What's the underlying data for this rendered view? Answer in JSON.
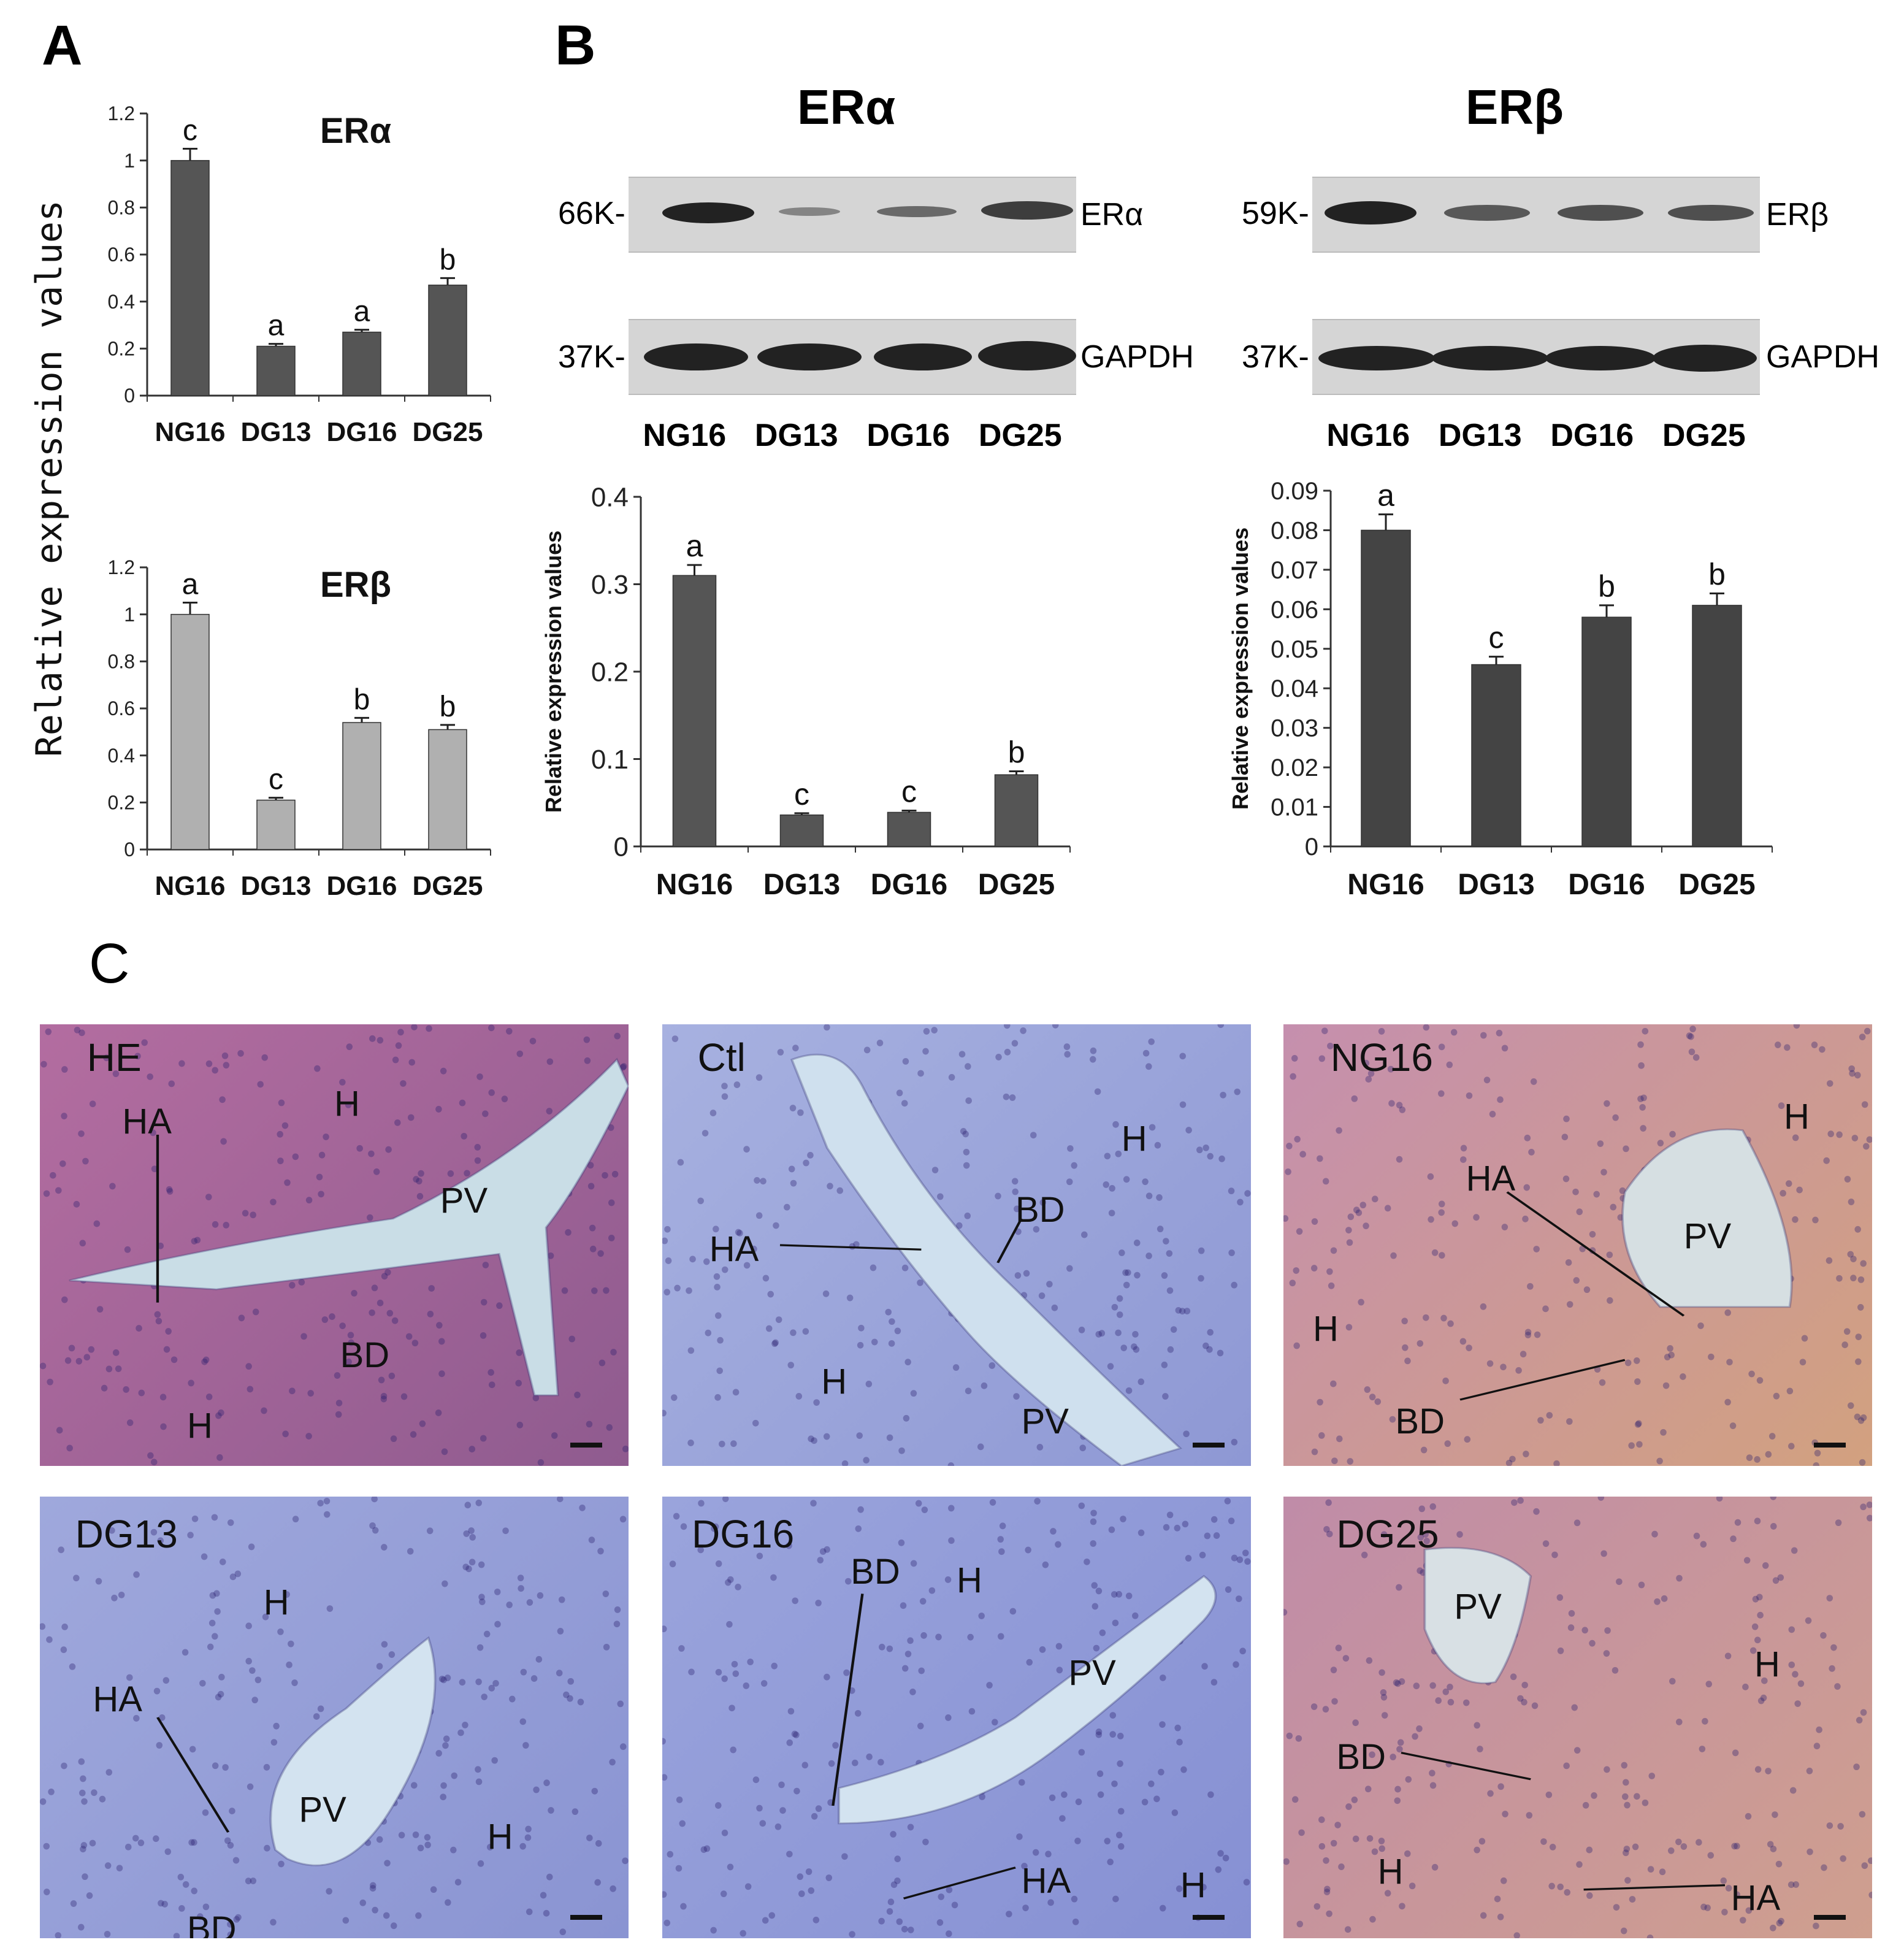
{
  "panels": {
    "a": "A",
    "b": "B",
    "c": "C"
  },
  "panel_a_ylabel": "Relative expression values",
  "panel_b_ylabel": "Relative expression values",
  "blots": {
    "era": {
      "title": "ERα",
      "top_marker": "66K-",
      "top_label": "ERα",
      "bottom_marker": "37K-",
      "bottom_label": "GAPDH",
      "lanes": [
        "NG16",
        "DG13",
        "DG16",
        "DG25"
      ],
      "band_intensity": [
        1.0,
        0.25,
        0.35,
        0.65
      ]
    },
    "erb": {
      "title": "ERβ",
      "top_marker": "59K-",
      "top_label": "ERβ",
      "bottom_marker": "37K-",
      "bottom_label": "GAPDH",
      "lanes": [
        "NG16",
        "DG13",
        "DG16",
        "DG25"
      ],
      "band_intensity": [
        1.0,
        0.55,
        0.6,
        0.6
      ]
    }
  },
  "chart_data": [
    {
      "id": "A-ERa",
      "type": "bar",
      "title": "ERα",
      "categories": [
        "NG16",
        "DG13",
        "DG16",
        "DG25"
      ],
      "values": [
        1.0,
        0.21,
        0.27,
        0.47
      ],
      "errors": [
        0.05,
        0.01,
        0.01,
        0.03
      ],
      "letters": [
        "c",
        "a",
        "a",
        "b"
      ],
      "ylim": [
        0,
        1.2
      ],
      "yticks": [
        0,
        0.2,
        0.4,
        0.6,
        0.8,
        1,
        1.2
      ],
      "ytick_labels": [
        "0",
        "0.2",
        "0.4",
        "0.6",
        "0.8",
        "1",
        "1.2"
      ],
      "color": "#555555"
    },
    {
      "id": "A-ERb",
      "type": "bar",
      "title": "ERβ",
      "categories": [
        "NG16",
        "DG13",
        "DG16",
        "DG25"
      ],
      "values": [
        1.0,
        0.21,
        0.54,
        0.51
      ],
      "errors": [
        0.05,
        0.01,
        0.02,
        0.02
      ],
      "letters": [
        "a",
        "c",
        "b",
        "b"
      ],
      "ylim": [
        0,
        1.2
      ],
      "yticks": [
        0,
        0.2,
        0.4,
        0.6,
        0.8,
        1,
        1.2
      ],
      "ytick_labels": [
        "0",
        "0.2",
        "0.4",
        "0.6",
        "0.8",
        "1",
        "1.2"
      ],
      "color": "#b0b0b0"
    },
    {
      "id": "B-ERa",
      "type": "bar",
      "title": "",
      "categories": [
        "NG16",
        "DG13",
        "DG16",
        "DG25"
      ],
      "values": [
        0.31,
        0.036,
        0.039,
        0.082
      ],
      "errors": [
        0.012,
        0.002,
        0.002,
        0.004
      ],
      "letters": [
        "a",
        "c",
        "c",
        "b"
      ],
      "ylim": [
        0,
        0.4
      ],
      "yticks": [
        0,
        0.1,
        0.2,
        0.3,
        0.4
      ],
      "ytick_labels": [
        "0",
        "0.1",
        "0.2",
        "0.3",
        "0.4"
      ],
      "color": "#555555"
    },
    {
      "id": "B-ERb",
      "type": "bar",
      "title": "",
      "categories": [
        "NG16",
        "DG13",
        "DG16",
        "DG25"
      ],
      "values": [
        0.08,
        0.046,
        0.058,
        0.061
      ],
      "errors": [
        0.004,
        0.002,
        0.003,
        0.003
      ],
      "letters": [
        "a",
        "c",
        "b",
        "b"
      ],
      "ylim": [
        0,
        0.09
      ],
      "yticks": [
        0,
        0.01,
        0.02,
        0.03,
        0.04,
        0.05,
        0.06,
        0.07,
        0.08,
        0.09
      ],
      "ytick_labels": [
        "0",
        "0.01",
        "0.02",
        "0.03",
        "0.04",
        "0.05",
        "0.06",
        "0.07",
        "0.08",
        "0.09"
      ],
      "color": "#444444"
    }
  ],
  "micrographs": [
    {
      "id": "he",
      "title": "HE",
      "bg": "#b36da0",
      "bg2": "#8f5b8f",
      "vessel": "#c9dde6",
      "labels": [
        "H",
        "HA",
        "PV",
        "BD",
        "H"
      ]
    },
    {
      "id": "ctl",
      "title": "Ctl",
      "bg": "#a7b1e0",
      "bg2": "#8e98d4",
      "vessel": "#cfe0ee",
      "labels": [
        "H",
        "BD",
        "HA",
        "H",
        "PV"
      ]
    },
    {
      "id": "ng16",
      "title": "NG16",
      "bg": "#c58fae",
      "bg2": "#d2a17f",
      "vessel": "#d6dfe2",
      "labels": [
        "H",
        "HA",
        "PV",
        "H",
        "BD"
      ]
    },
    {
      "id": "dg13",
      "title": "DG13",
      "bg": "#9fa8dc",
      "bg2": "#8a94d2",
      "vessel": "#d3e3f0",
      "labels": [
        "H",
        "HA",
        "PV",
        "H",
        "BD"
      ]
    },
    {
      "id": "dg16",
      "title": "DG16",
      "bg": "#9aa4dc",
      "bg2": "#8690d3",
      "vessel": "#d3e3f0",
      "labels": [
        "BD",
        "H",
        "PV",
        "HA",
        "H"
      ]
    },
    {
      "id": "dg25",
      "title": "DG25",
      "bg": "#c08ca8",
      "bg2": "#cf9f8e",
      "vessel": "#d8e0e4",
      "labels": [
        "PV",
        "H",
        "BD",
        "H",
        "HA"
      ]
    }
  ]
}
